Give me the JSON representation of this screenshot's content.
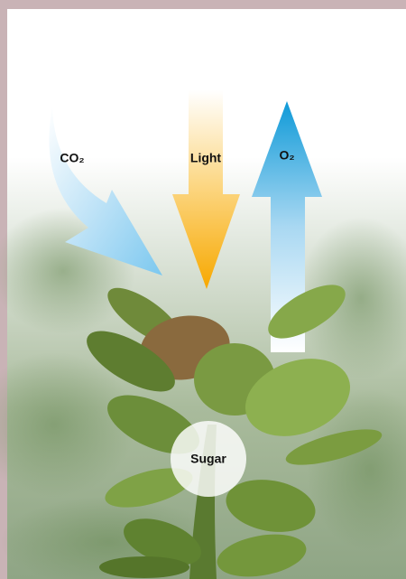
{
  "labels": {
    "co2": "CO₂",
    "light": "Light",
    "o2": "O₂",
    "sugar": "Sugar"
  }
}
